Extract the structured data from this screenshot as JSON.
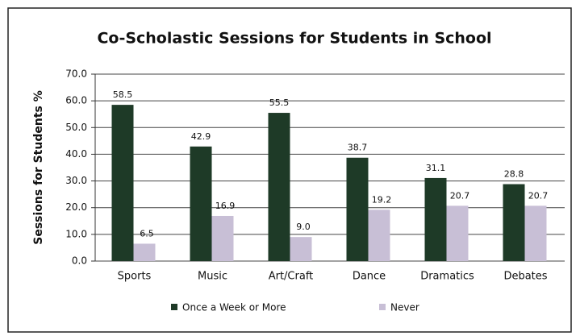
{
  "chart_data": {
    "type": "bar",
    "title": "Co-Scholastic Sessions for Students in School",
    "y_label": "Sessions for Students %",
    "categories": [
      "Sports",
      "Music",
      "Art/Craft",
      "Dance",
      "Dramatics",
      "Debates"
    ],
    "series": [
      {
        "name": "Once a Week or More",
        "color": "#1e3a27",
        "values": [
          58.5,
          42.9,
          55.5,
          38.7,
          31.1,
          28.8
        ],
        "value_labels": [
          "58.5",
          "42.9",
          "55.5",
          "38.7",
          "31.1",
          "28.8"
        ]
      },
      {
        "name": "Never",
        "color": "#c8bfd6",
        "values": [
          6.5,
          16.9,
          9.0,
          19.2,
          20.7,
          20.7
        ],
        "value_labels": [
          "6.5",
          "16.9",
          "9.0",
          "19.2",
          "20.7",
          "20.7"
        ]
      }
    ],
    "ylim": [
      0,
      70
    ],
    "yticks": [
      {
        "value": 0,
        "label": "0.0"
      },
      {
        "value": 10,
        "label": "10.0"
      },
      {
        "value": 20,
        "label": "20.0"
      },
      {
        "value": 30,
        "label": "30.0"
      },
      {
        "value": 40,
        "label": "40.0"
      },
      {
        "value": 50,
        "label": "50.0"
      },
      {
        "value": 60,
        "label": "60.0"
      },
      {
        "value": 70,
        "label": "70.0"
      }
    ],
    "grid": true,
    "legend": "bottom"
  }
}
